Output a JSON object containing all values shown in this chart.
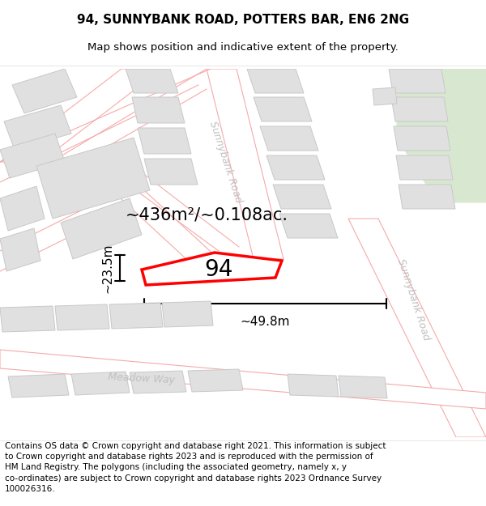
{
  "title_line1": "94, SUNNYBANK ROAD, POTTERS BAR, EN6 2NG",
  "title_line2": "Map shows position and indicative extent of the property.",
  "footnote_lines": [
    "Contains OS data © Crown copyright and database right 2021. This information is subject",
    "to Crown copyright and database rights 2023 and is reproduced with the permission of",
    "HM Land Registry. The polygons (including the associated geometry, namely x, y",
    "co-ordinates) are subject to Crown copyright and database rights 2023 Ordnance Survey",
    "100026316."
  ],
  "area_label": "~436m²/~0.108ac.",
  "width_label": "~49.8m",
  "height_label": "~23.5m",
  "property_number": "94",
  "map_bg": "#ffffff",
  "road_outline": "#f5aaaa",
  "block_fill": "#e0e0e0",
  "block_stroke": "#c8c8c8",
  "highlight_stroke": "#ff0000",
  "green_fill": "#d8e8d0",
  "road_label_color": "#c0c0c0",
  "title_fontsize": 11,
  "subtitle_fontsize": 9.5,
  "footnote_fontsize": 7.5,
  "area_label_fontsize": 15,
  "number_fontsize": 20,
  "dim_fontsize": 11,
  "road_label_fontsize": 9
}
